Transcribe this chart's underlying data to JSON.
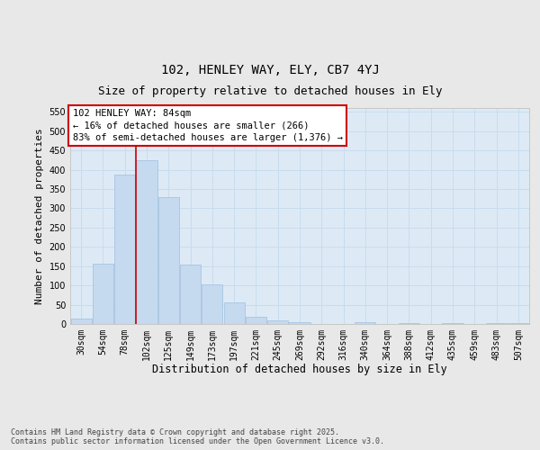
{
  "title1": "102, HENLEY WAY, ELY, CB7 4YJ",
  "title2": "Size of property relative to detached houses in Ely",
  "xlabel": "Distribution of detached houses by size in Ely",
  "ylabel": "Number of detached properties",
  "categories": [
    "30sqm",
    "54sqm",
    "78sqm",
    "102sqm",
    "125sqm",
    "149sqm",
    "173sqm",
    "197sqm",
    "221sqm",
    "245sqm",
    "269sqm",
    "292sqm",
    "316sqm",
    "340sqm",
    "364sqm",
    "388sqm",
    "412sqm",
    "435sqm",
    "459sqm",
    "483sqm",
    "507sqm"
  ],
  "values": [
    13,
    157,
    387,
    425,
    328,
    153,
    103,
    55,
    19,
    10,
    4,
    1,
    0,
    4,
    0,
    3,
    0,
    2,
    0,
    2,
    3
  ],
  "bar_color": "#c5d9ef",
  "bar_edge_color": "#9fbfdf",
  "highlight_line_index": 2.5,
  "annotation_line1": "102 HENLEY WAY: 84sqm",
  "annotation_line2": "← 16% of detached houses are smaller (266)",
  "annotation_line3": "83% of semi-detached houses are larger (1,376) →",
  "annotation_box_facecolor": "#ffffff",
  "annotation_box_edgecolor": "#cc0000",
  "ylim": [
    0,
    560
  ],
  "yticks": [
    0,
    50,
    100,
    150,
    200,
    250,
    300,
    350,
    400,
    450,
    500,
    550
  ],
  "grid_color": "#c8dced",
  "plot_bg_color": "#ddeaf6",
  "fig_bg_color": "#e8e8e8",
  "title1_fontsize": 10,
  "title2_fontsize": 9,
  "xlabel_fontsize": 8.5,
  "ylabel_fontsize": 8,
  "tick_fontsize": 7,
  "annotation_fontsize": 7.5,
  "footer_fontsize": 6,
  "footer_text": "Contains HM Land Registry data © Crown copyright and database right 2025.\nContains public sector information licensed under the Open Government Licence v3.0."
}
